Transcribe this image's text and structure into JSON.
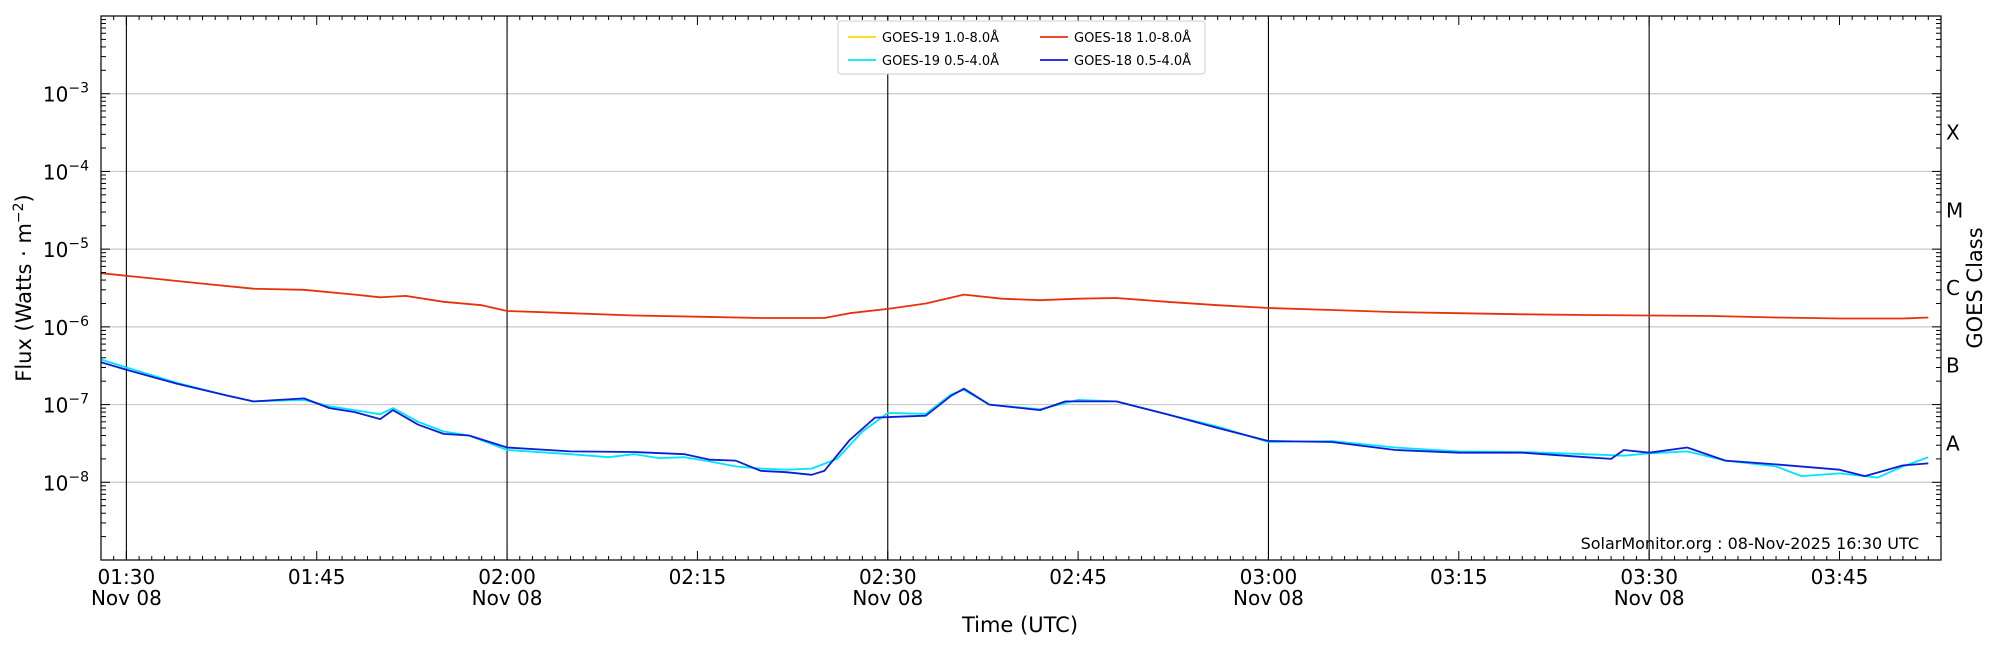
{
  "chart_data": {
    "type": "line",
    "xlabel": "Time (UTC)",
    "ylabel": "Flux (Watts · m⁻²)",
    "ylabel_base": "Flux (Watts · m",
    "ylabel_sup": "−2",
    "ylabel_end": ")",
    "right_label": "GOES Class",
    "footer": "SolarMonitor.org : 08-Nov-2025 16:30 UTC",
    "y_scale": "log",
    "ylim": [
      1e-09,
      0.01
    ],
    "xlim": [
      "01:28",
      "03:53"
    ],
    "grid": "horizontal at decades",
    "legend_position": "top-center",
    "y_ticks": [
      {
        "value": 1e-08,
        "exp": "−8"
      },
      {
        "value": 1e-07,
        "exp": "−7"
      },
      {
        "value": 1e-06,
        "exp": "−6"
      },
      {
        "value": 1e-05,
        "exp": "−5"
      },
      {
        "value": 0.0001,
        "exp": "−4"
      },
      {
        "value": 0.001,
        "exp": "−3"
      }
    ],
    "goes_classes": [
      {
        "label": "A",
        "value": 1e-08
      },
      {
        "label": "B",
        "value": 1e-07
      },
      {
        "label": "C",
        "value": 1e-06
      },
      {
        "label": "M",
        "value": 1e-05
      },
      {
        "label": "X",
        "value": 0.0001
      }
    ],
    "x_ticks": [
      {
        "time": "01:30",
        "line1": "01:30",
        "line2": "Nov 08"
      },
      {
        "time": "01:45",
        "line1": "01:45",
        "line2": ""
      },
      {
        "time": "02:00",
        "line1": "02:00",
        "line2": "Nov 08"
      },
      {
        "time": "02:15",
        "line1": "02:15",
        "line2": ""
      },
      {
        "time": "02:30",
        "line1": "02:30",
        "line2": "Nov 08"
      },
      {
        "time": "02:45",
        "line1": "02:45",
        "line2": ""
      },
      {
        "time": "03:00",
        "line1": "03:00",
        "line2": "Nov 08"
      },
      {
        "time": "03:15",
        "line1": "03:15",
        "line2": ""
      },
      {
        "time": "03:30",
        "line1": "03:30",
        "line2": "Nov 08"
      },
      {
        "time": "03:45",
        "line1": "03:45",
        "line2": ""
      }
    ],
    "vertical_lines": [
      "01:30",
      "02:00",
      "02:30",
      "03:00",
      "03:30"
    ],
    "legend": [
      {
        "name": "GOES-19 1.0-8.0Å",
        "color": "#ffd700"
      },
      {
        "name": "GOES-19 0.5-4.0Å",
        "color": "#00e5ff"
      },
      {
        "name": "GOES-18 1.0-8.0Å",
        "color": "#e8310a"
      },
      {
        "name": "GOES-18 0.5-4.0Å",
        "color": "#0a1ed8"
      }
    ],
    "series": [
      {
        "name": "GOES-18 1.0-8.0Å",
        "color": "#e8310a",
        "points": [
          [
            "01:28",
            4.9e-06
          ],
          [
            "01:32",
            4.2e-06
          ],
          [
            "01:36",
            3.6e-06
          ],
          [
            "01:40",
            3.1e-06
          ],
          [
            "01:44",
            3e-06
          ],
          [
            "01:48",
            2.6e-06
          ],
          [
            "01:50",
            2.4e-06
          ],
          [
            "01:52",
            2.5e-06
          ],
          [
            "01:55",
            2.1e-06
          ],
          [
            "01:58",
            1.9e-06
          ],
          [
            "02:00",
            1.6e-06
          ],
          [
            "02:05",
            1.5e-06
          ],
          [
            "02:10",
            1.4e-06
          ],
          [
            "02:15",
            1.35e-06
          ],
          [
            "02:20",
            1.3e-06
          ],
          [
            "02:25",
            1.3e-06
          ],
          [
            "02:27",
            1.5e-06
          ],
          [
            "02:30",
            1.7e-06
          ],
          [
            "02:33",
            2e-06
          ],
          [
            "02:36",
            2.6e-06
          ],
          [
            "02:39",
            2.3e-06
          ],
          [
            "02:42",
            2.2e-06
          ],
          [
            "02:45",
            2.3e-06
          ],
          [
            "02:48",
            2.35e-06
          ],
          [
            "02:52",
            2.1e-06
          ],
          [
            "02:56",
            1.9e-06
          ],
          [
            "03:00",
            1.75e-06
          ],
          [
            "03:05",
            1.65e-06
          ],
          [
            "03:10",
            1.55e-06
          ],
          [
            "03:15",
            1.5e-06
          ],
          [
            "03:20",
            1.45e-06
          ],
          [
            "03:25",
            1.42e-06
          ],
          [
            "03:30",
            1.4e-06
          ],
          [
            "03:35",
            1.38e-06
          ],
          [
            "03:40",
            1.32e-06
          ],
          [
            "03:45",
            1.28e-06
          ],
          [
            "03:50",
            1.28e-06
          ],
          [
            "03:52",
            1.32e-06
          ]
        ]
      },
      {
        "name": "GOES-19 0.5-4.0Å",
        "color": "#00e5ff",
        "points": [
          [
            "01:28",
            3.8e-07
          ],
          [
            "01:30",
            3e-07
          ],
          [
            "01:34",
            1.9e-07
          ],
          [
            "01:38",
            1.3e-07
          ],
          [
            "01:40",
            1.1e-07
          ],
          [
            "01:44",
            1.15e-07
          ],
          [
            "01:46",
            9.5e-08
          ],
          [
            "01:48",
            8.5e-08
          ],
          [
            "01:50",
            7.5e-08
          ],
          [
            "01:51",
            9e-08
          ],
          [
            "01:53",
            6e-08
          ],
          [
            "01:55",
            4.5e-08
          ],
          [
            "01:57",
            4e-08
          ],
          [
            "02:00",
            2.6e-08
          ],
          [
            "02:05",
            2.3e-08
          ],
          [
            "02:08",
            2.1e-08
          ],
          [
            "02:10",
            2.3e-08
          ],
          [
            "02:12",
            2.05e-08
          ],
          [
            "02:14",
            2.1e-08
          ],
          [
            "02:16",
            1.85e-08
          ],
          [
            "02:18",
            1.6e-08
          ],
          [
            "02:20",
            1.5e-08
          ],
          [
            "02:22",
            1.45e-08
          ],
          [
            "02:24",
            1.5e-08
          ],
          [
            "02:26",
            2e-08
          ],
          [
            "02:28",
            4.5e-08
          ],
          [
            "02:30",
            7.8e-08
          ],
          [
            "02:33",
            7.6e-08
          ],
          [
            "02:35",
            1.35e-07
          ],
          [
            "02:36",
            1.55e-07
          ],
          [
            "02:38",
            1e-07
          ],
          [
            "02:42",
            8.7e-08
          ],
          [
            "02:45",
            1.15e-07
          ],
          [
            "02:48",
            1.1e-07
          ],
          [
            "02:52",
            7.5e-08
          ],
          [
            "02:56",
            5.2e-08
          ],
          [
            "03:00",
            3.3e-08
          ],
          [
            "03:05",
            3.4e-08
          ],
          [
            "03:10",
            2.8e-08
          ],
          [
            "03:15",
            2.5e-08
          ],
          [
            "03:20",
            2.45e-08
          ],
          [
            "03:25",
            2.3e-08
          ],
          [
            "03:28",
            2.2e-08
          ],
          [
            "03:30",
            2.35e-08
          ],
          [
            "03:33",
            2.5e-08
          ],
          [
            "03:36",
            1.9e-08
          ],
          [
            "03:40",
            1.6e-08
          ],
          [
            "03:42",
            1.2e-08
          ],
          [
            "03:45",
            1.3e-08
          ],
          [
            "03:48",
            1.15e-08
          ],
          [
            "03:50",
            1.6e-08
          ],
          [
            "03:52",
            2.1e-08
          ]
        ]
      },
      {
        "name": "GOES-18 0.5-4.0Å",
        "color": "#0a1ed8",
        "points": [
          [
            "01:28",
            3.5e-07
          ],
          [
            "01:30",
            2.8e-07
          ],
          [
            "01:34",
            1.85e-07
          ],
          [
            "01:38",
            1.3e-07
          ],
          [
            "01:40",
            1.1e-07
          ],
          [
            "01:44",
            1.2e-07
          ],
          [
            "01:46",
            9e-08
          ],
          [
            "01:48",
            8e-08
          ],
          [
            "01:50",
            6.5e-08
          ],
          [
            "01:51",
            8.5e-08
          ],
          [
            "01:53",
            5.5e-08
          ],
          [
            "01:55",
            4.2e-08
          ],
          [
            "01:57",
            4e-08
          ],
          [
            "02:00",
            2.8e-08
          ],
          [
            "02:05",
            2.5e-08
          ],
          [
            "02:10",
            2.45e-08
          ],
          [
            "02:14",
            2.3e-08
          ],
          [
            "02:16",
            1.95e-08
          ],
          [
            "02:18",
            1.9e-08
          ],
          [
            "02:20",
            1.4e-08
          ],
          [
            "02:22",
            1.35e-08
          ],
          [
            "02:24",
            1.25e-08
          ],
          [
            "02:25",
            1.4e-08
          ],
          [
            "02:27",
            3.5e-08
          ],
          [
            "02:29",
            6.8e-08
          ],
          [
            "02:33",
            7.2e-08
          ],
          [
            "02:35",
            1.3e-07
          ],
          [
            "02:36",
            1.6e-07
          ],
          [
            "02:38",
            1e-07
          ],
          [
            "02:42",
            8.5e-08
          ],
          [
            "02:44",
            1.1e-07
          ],
          [
            "02:48",
            1.1e-07
          ],
          [
            "02:52",
            7.5e-08
          ],
          [
            "02:56",
            5e-08
          ],
          [
            "03:00",
            3.4e-08
          ],
          [
            "03:05",
            3.3e-08
          ],
          [
            "03:10",
            2.6e-08
          ],
          [
            "03:15",
            2.4e-08
          ],
          [
            "03:20",
            2.4e-08
          ],
          [
            "03:25",
            2.1e-08
          ],
          [
            "03:27",
            2e-08
          ],
          [
            "03:28",
            2.6e-08
          ],
          [
            "03:30",
            2.4e-08
          ],
          [
            "03:33",
            2.8e-08
          ],
          [
            "03:36",
            1.9e-08
          ],
          [
            "03:40",
            1.7e-08
          ],
          [
            "03:45",
            1.45e-08
          ],
          [
            "03:47",
            1.2e-08
          ],
          [
            "03:50",
            1.65e-08
          ],
          [
            "03:52",
            1.75e-08
          ]
        ]
      }
    ]
  }
}
